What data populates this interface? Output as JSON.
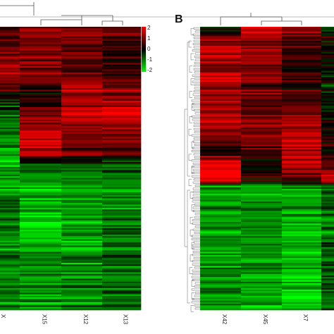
{
  "chart_data": [
    {
      "type": "heatmap",
      "panel_label": "",
      "columns": [
        "X",
        "X15",
        "X12",
        "X13"
      ],
      "row_count": 180,
      "column_profiles": [
        [
          [
            0.0,
            0.3
          ],
          [
            0.15,
            1.2
          ],
          [
            0.22,
            0.6
          ],
          [
            0.25,
            0.2
          ],
          [
            0.3,
            -0.8
          ],
          [
            0.45,
            -1.4
          ],
          [
            0.55,
            -1.3
          ],
          [
            0.65,
            -0.9
          ],
          [
            0.75,
            -1.2
          ],
          [
            0.85,
            -0.8
          ],
          [
            1.0,
            -1.1
          ]
        ],
        [
          [
            0.0,
            1.1
          ],
          [
            0.15,
            1.0
          ],
          [
            0.22,
            0.3
          ],
          [
            0.3,
            0.6
          ],
          [
            0.38,
            1.5
          ],
          [
            0.45,
            1.3
          ],
          [
            0.5,
            -1.0
          ],
          [
            0.6,
            -1.4
          ],
          [
            0.7,
            -1.6
          ],
          [
            0.85,
            -1.0
          ],
          [
            1.0,
            -1.2
          ]
        ],
        [
          [
            0.0,
            1.0
          ],
          [
            0.15,
            0.5
          ],
          [
            0.22,
            1.6
          ],
          [
            0.3,
            1.3
          ],
          [
            0.38,
            1.0
          ],
          [
            0.45,
            0.8
          ],
          [
            0.5,
            -1.0
          ],
          [
            0.6,
            -1.2
          ],
          [
            0.7,
            -1.3
          ],
          [
            0.85,
            -1.0
          ],
          [
            1.0,
            -1.0
          ]
        ],
        [
          [
            0.0,
            0.7
          ],
          [
            0.15,
            0.2
          ],
          [
            0.22,
            1.1
          ],
          [
            0.3,
            1.6
          ],
          [
            0.38,
            0.9
          ],
          [
            0.45,
            0.7
          ],
          [
            0.5,
            -0.8
          ],
          [
            0.6,
            -1.1
          ],
          [
            0.7,
            -1.0
          ],
          [
            0.85,
            -0.8
          ],
          [
            1.0,
            -0.9
          ]
        ]
      ],
      "color_scale": {
        "min": -2,
        "max": 2,
        "low_color": "#00ff00",
        "mid_color": "#000000",
        "high_color": "#ff0000",
        "ticks": [
          "2",
          "1",
          "0",
          "-1",
          "-2"
        ]
      },
      "dendrogram": "top"
    },
    {
      "type": "heatmap",
      "panel_label": "B",
      "columns": [
        "X42",
        "X45",
        "X7",
        ""
      ],
      "row_count": 180,
      "column_profiles": [
        [
          [
            0.0,
            -0.6
          ],
          [
            0.04,
            1.2
          ],
          [
            0.2,
            1.4
          ],
          [
            0.35,
            1.2
          ],
          [
            0.45,
            0.3
          ],
          [
            0.48,
            1.9
          ],
          [
            0.54,
            1.9
          ],
          [
            0.56,
            -1.0
          ],
          [
            0.7,
            -1.3
          ],
          [
            0.85,
            -1.2
          ],
          [
            1.0,
            -1.1
          ]
        ],
        [
          [
            0.0,
            1.8
          ],
          [
            0.04,
            1.0
          ],
          [
            0.2,
            0.8
          ],
          [
            0.35,
            1.0
          ],
          [
            0.45,
            0.5
          ],
          [
            0.48,
            0.2
          ],
          [
            0.54,
            0.3
          ],
          [
            0.56,
            -1.0
          ],
          [
            0.7,
            -1.2
          ],
          [
            0.85,
            -1.3
          ],
          [
            1.0,
            -1.5
          ]
        ],
        [
          [
            0.0,
            1.5
          ],
          [
            0.04,
            0.5
          ],
          [
            0.2,
            0.3
          ],
          [
            0.35,
            1.2
          ],
          [
            0.45,
            1.6
          ],
          [
            0.48,
            1.4
          ],
          [
            0.54,
            0.6
          ],
          [
            0.56,
            -1.1
          ],
          [
            0.7,
            -1.4
          ],
          [
            0.85,
            -1.5
          ],
          [
            1.0,
            -1.6
          ]
        ],
        [
          [
            0.0,
            -0.4
          ],
          [
            0.04,
            0.2
          ],
          [
            0.2,
            -0.3
          ],
          [
            0.35,
            0.1
          ],
          [
            0.45,
            0.2
          ],
          [
            0.48,
            0.6
          ],
          [
            0.54,
            1.4
          ],
          [
            0.56,
            -0.4
          ],
          [
            0.7,
            -1.0
          ],
          [
            0.85,
            -0.6
          ],
          [
            1.0,
            -0.8
          ]
        ]
      ],
      "color_scale": {
        "min": -2,
        "max": 2,
        "low_color": "#00ff00",
        "mid_color": "#000000",
        "high_color": "#ff0000"
      },
      "dendrogram": "top-and-left"
    }
  ]
}
